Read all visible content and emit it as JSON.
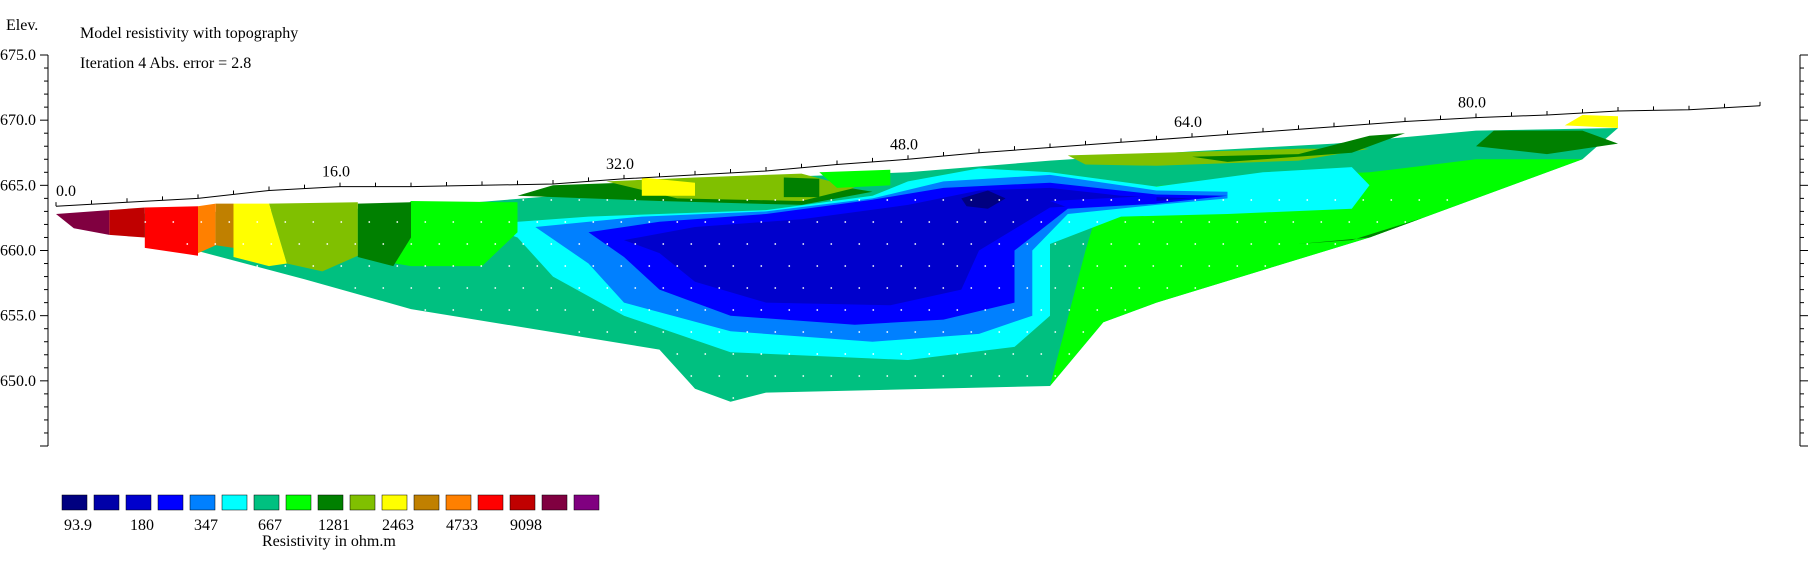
{
  "chart_data": {
    "type": "heatmap",
    "title": "Model resistivity with topography",
    "subtitle": "Iteration 4 Abs. error = 2.8",
    "ylabel": "Elev.",
    "xlim": [
      0,
      96
    ],
    "ylim": [
      645,
      675
    ],
    "x_ticks": [
      {
        "x": 0,
        "label": "0.0"
      },
      {
        "x": 16,
        "label": "16.0"
      },
      {
        "x": 32,
        "label": "32.0"
      },
      {
        "x": 48,
        "label": "48.0"
      },
      {
        "x": 64,
        "label": "64.0"
      },
      {
        "x": 80,
        "label": "80.0"
      }
    ],
    "y_ticks": [
      {
        "y": 675,
        "label": "675.0"
      },
      {
        "y": 670,
        "label": "670.0"
      },
      {
        "y": 665,
        "label": "665.0"
      },
      {
        "y": 660,
        "label": "660.0"
      },
      {
        "y": 655,
        "label": "655.0"
      },
      {
        "y": 650,
        "label": "650.0"
      }
    ],
    "legend": {
      "title": "Resistivity in ohm.m",
      "colors": [
        "#000080",
        "#0000a8",
        "#0000cc",
        "#0000ff",
        "#0080ff",
        "#00ffff",
        "#00c080",
        "#00ff00",
        "#008000",
        "#80c000",
        "#ffff00",
        "#c08000",
        "#ff8000",
        "#ff0000",
        "#c00000",
        "#800040",
        "#800080"
      ],
      "labels": [
        "93.9",
        "180",
        "347",
        "667",
        "1281",
        "2463",
        "4733",
        "9098"
      ]
    },
    "topography": [
      [
        0,
        663.4
      ],
      [
        4,
        663.7
      ],
      [
        8,
        664.0
      ],
      [
        12,
        664.6
      ],
      [
        16,
        664.9
      ],
      [
        20,
        664.9
      ],
      [
        24,
        665.0
      ],
      [
        28,
        665.1
      ],
      [
        32,
        665.5
      ],
      [
        36,
        665.8
      ],
      [
        40,
        666.1
      ],
      [
        44,
        666.6
      ],
      [
        48,
        667.0
      ],
      [
        52,
        667.5
      ],
      [
        56,
        667.9
      ],
      [
        60,
        668.3
      ],
      [
        64,
        668.7
      ],
      [
        68,
        669.1
      ],
      [
        72,
        669.5
      ],
      [
        76,
        669.9
      ],
      [
        80,
        670.2
      ],
      [
        84,
        670.4
      ],
      [
        88,
        670.7
      ],
      [
        92,
        670.8
      ],
      [
        96,
        671.1
      ]
    ],
    "regions": [
      {
        "color_index": 6,
        "points": [
          [
            4,
            662.8
          ],
          [
            10,
            663.0
          ],
          [
            20,
            663.3
          ],
          [
            30,
            664.4
          ],
          [
            40,
            665.6
          ],
          [
            48,
            666.0
          ],
          [
            56,
            666.9
          ],
          [
            64,
            667.6
          ],
          [
            72,
            668.2
          ],
          [
            80,
            669.2
          ],
          [
            88,
            669.4
          ],
          [
            86,
            667.0
          ],
          [
            80,
            664.0
          ],
          [
            74,
            661.0
          ],
          [
            62,
            656.0
          ],
          [
            59,
            654.5
          ],
          [
            56,
            649.6
          ],
          [
            40,
            649.1
          ],
          [
            38,
            648.4
          ],
          [
            36,
            649.4
          ],
          [
            34,
            652.4
          ],
          [
            20,
            655.5
          ],
          [
            14,
            657.8
          ],
          [
            4,
            661.4
          ]
        ]
      },
      {
        "color_index": 7,
        "points": [
          [
            59,
            664.5
          ],
          [
            66,
            665.5
          ],
          [
            74,
            666.0
          ],
          [
            80,
            667.0
          ],
          [
            86,
            667.0
          ],
          [
            80,
            664.0
          ],
          [
            74,
            661.0
          ],
          [
            62,
            656.0
          ],
          [
            59,
            654.5
          ],
          [
            56,
            649.6
          ],
          [
            58,
            660.0
          ]
        ]
      },
      {
        "color_index": 8,
        "points": [
          [
            70,
            660.5
          ],
          [
            74,
            661.0
          ],
          [
            80,
            664.0
          ],
          [
            77,
            662.5
          ],
          [
            73,
            660.8
          ]
        ]
      },
      {
        "color_index": 8,
        "points": [
          [
            26,
            664.2
          ],
          [
            34,
            663.8
          ],
          [
            42,
            663.5
          ],
          [
            46,
            664.5
          ],
          [
            42,
            665.4
          ],
          [
            34,
            665.3
          ],
          [
            28,
            665.0
          ]
        ]
      },
      {
        "color_index": 9,
        "points": [
          [
            31,
            665.3
          ],
          [
            35,
            664.0
          ],
          [
            42,
            663.8
          ],
          [
            45,
            664.8
          ],
          [
            42,
            665.9
          ],
          [
            36,
            665.6
          ]
        ]
      },
      {
        "color_index": 10,
        "points": [
          [
            33,
            665.6
          ],
          [
            36,
            665.2
          ],
          [
            36,
            664.2
          ],
          [
            33,
            664.2
          ]
        ]
      },
      {
        "color_index": 8,
        "points": [
          [
            41,
            665.6
          ],
          [
            43,
            665.5
          ],
          [
            43,
            664.1
          ],
          [
            41,
            664.1
          ]
        ]
      },
      {
        "color_index": 7,
        "points": [
          [
            43,
            666.0
          ],
          [
            47,
            666.2
          ],
          [
            47,
            665.0
          ],
          [
            44,
            664.8
          ]
        ]
      },
      {
        "color_index": 9,
        "points": [
          [
            57,
            667.3
          ],
          [
            70,
            667.8
          ],
          [
            74,
            667.8
          ],
          [
            70,
            666.9
          ],
          [
            62,
            666.5
          ],
          [
            58,
            666.6
          ]
        ]
      },
      {
        "color_index": 8,
        "points": [
          [
            64,
            667.2
          ],
          [
            70,
            667.4
          ],
          [
            74,
            668.8
          ],
          [
            76,
            669.0
          ],
          [
            73,
            667.5
          ],
          [
            66,
            666.8
          ]
        ]
      },
      {
        "color_index": 8,
        "points": [
          [
            81,
            669.2
          ],
          [
            86,
            669.2
          ],
          [
            88,
            668.2
          ],
          [
            84,
            667.4
          ],
          [
            80,
            668.0
          ]
        ]
      },
      {
        "color_index": 10,
        "points": [
          [
            85,
            669.6
          ],
          [
            88,
            669.4
          ],
          [
            88,
            670.3
          ],
          [
            86,
            670.4
          ]
        ]
      },
      {
        "color_index": 5,
        "points": [
          [
            24,
            662.0
          ],
          [
            30,
            662.6
          ],
          [
            40,
            663.1
          ],
          [
            46,
            664.2
          ],
          [
            48,
            665.3
          ],
          [
            52,
            666.3
          ],
          [
            56,
            666.0
          ],
          [
            62,
            664.9
          ],
          [
            68,
            666.0
          ],
          [
            73,
            666.4
          ],
          [
            74,
            665.0
          ],
          [
            73,
            663.2
          ],
          [
            66,
            662.8
          ],
          [
            60,
            662.6
          ],
          [
            56,
            660.5
          ],
          [
            56,
            655.0
          ],
          [
            54,
            652.6
          ],
          [
            48,
            651.6
          ],
          [
            38,
            652.2
          ],
          [
            32,
            655.0
          ],
          [
            28,
            658.0
          ],
          [
            26,
            661.0
          ]
        ]
      },
      {
        "color_index": 4,
        "points": [
          [
            27,
            661.8
          ],
          [
            33,
            662.6
          ],
          [
            40,
            663.0
          ],
          [
            46,
            664.0
          ],
          [
            50,
            665.3
          ],
          [
            56,
            665.8
          ],
          [
            62,
            664.6
          ],
          [
            66,
            664.5
          ],
          [
            66,
            664.0
          ],
          [
            62,
            663.5
          ],
          [
            57,
            662.8
          ],
          [
            55,
            660.0
          ],
          [
            55,
            655.0
          ],
          [
            52,
            653.6
          ],
          [
            46,
            653.0
          ],
          [
            38,
            653.8
          ],
          [
            32,
            656.0
          ],
          [
            30,
            659.0
          ]
        ]
      },
      {
        "color_index": 3,
        "points": [
          [
            30,
            661.4
          ],
          [
            34,
            662.2
          ],
          [
            40,
            662.8
          ],
          [
            46,
            663.9
          ],
          [
            50,
            664.8
          ],
          [
            56,
            665.2
          ],
          [
            62,
            664.3
          ],
          [
            66,
            664.2
          ],
          [
            62,
            663.6
          ],
          [
            57,
            663.2
          ],
          [
            54,
            660.0
          ],
          [
            54,
            656.0
          ],
          [
            50,
            654.7
          ],
          [
            45,
            654.3
          ],
          [
            38,
            655.0
          ],
          [
            34,
            657.0
          ],
          [
            32,
            659.5
          ]
        ]
      },
      {
        "color_index": 2,
        "points": [
          [
            32,
            660.8
          ],
          [
            36,
            661.8
          ],
          [
            42,
            662.4
          ],
          [
            48,
            663.5
          ],
          [
            52,
            664.6
          ],
          [
            56,
            664.8
          ],
          [
            60,
            664.2
          ],
          [
            64,
            664.0
          ],
          [
            60,
            663.6
          ],
          [
            56,
            663.3
          ],
          [
            52,
            660.0
          ],
          [
            51,
            657.0
          ],
          [
            47,
            655.8
          ],
          [
            40,
            656.0
          ],
          [
            36,
            657.6
          ],
          [
            34,
            659.8
          ]
        ]
      },
      {
        "color_index": 0,
        "points": [
          [
            51,
            664.0
          ],
          [
            52.5,
            664.6
          ],
          [
            53.5,
            664.0
          ],
          [
            52.5,
            663.2
          ],
          [
            51.3,
            663.4
          ]
        ]
      },
      {
        "color_index": 3,
        "points": [
          [
            56,
            663.8
          ],
          [
            62,
            664.2
          ],
          [
            62,
            663.6
          ],
          [
            57,
            663.3
          ]
        ]
      },
      {
        "color_index": 7,
        "points": [
          [
            20,
            663.8
          ],
          [
            26,
            663.7
          ],
          [
            26,
            661.4
          ],
          [
            24,
            658.8
          ],
          [
            20,
            658.8
          ],
          [
            17,
            659.5
          ]
        ]
      },
      {
        "color_index": 8,
        "points": [
          [
            17,
            663.6
          ],
          [
            20,
            663.7
          ],
          [
            20,
            661.0
          ],
          [
            19,
            658.8
          ],
          [
            17,
            659.5
          ]
        ]
      },
      {
        "color_index": 9,
        "points": [
          [
            12,
            663.6
          ],
          [
            17,
            663.7
          ],
          [
            17,
            659.6
          ],
          [
            15,
            658.4
          ],
          [
            13,
            659.0
          ]
        ]
      },
      {
        "color_index": 10,
        "points": [
          [
            10,
            663.6
          ],
          [
            12,
            663.6
          ],
          [
            13,
            659.0
          ],
          [
            12,
            658.8
          ],
          [
            10,
            659.5
          ]
        ]
      },
      {
        "color_index": 11,
        "points": [
          [
            9,
            663.6
          ],
          [
            10,
            663.6
          ],
          [
            10,
            660.2
          ],
          [
            9,
            660.4
          ]
        ]
      },
      {
        "color_index": 12,
        "points": [
          [
            8,
            663.4
          ],
          [
            9,
            663.6
          ],
          [
            9,
            660.4
          ],
          [
            8,
            659.8
          ]
        ]
      },
      {
        "color_index": 13,
        "points": [
          [
            5,
            663.3
          ],
          [
            8,
            663.4
          ],
          [
            8,
            659.6
          ],
          [
            5,
            660.2
          ]
        ]
      },
      {
        "color_index": 14,
        "points": [
          [
            3,
            663.1
          ],
          [
            5,
            663.3
          ],
          [
            5,
            661.0
          ],
          [
            3,
            661.2
          ]
        ]
      },
      {
        "color_index": 15,
        "points": [
          [
            0,
            662.8
          ],
          [
            3,
            663.1
          ],
          [
            3,
            661.2
          ],
          [
            1,
            661.7
          ]
        ]
      }
    ]
  }
}
